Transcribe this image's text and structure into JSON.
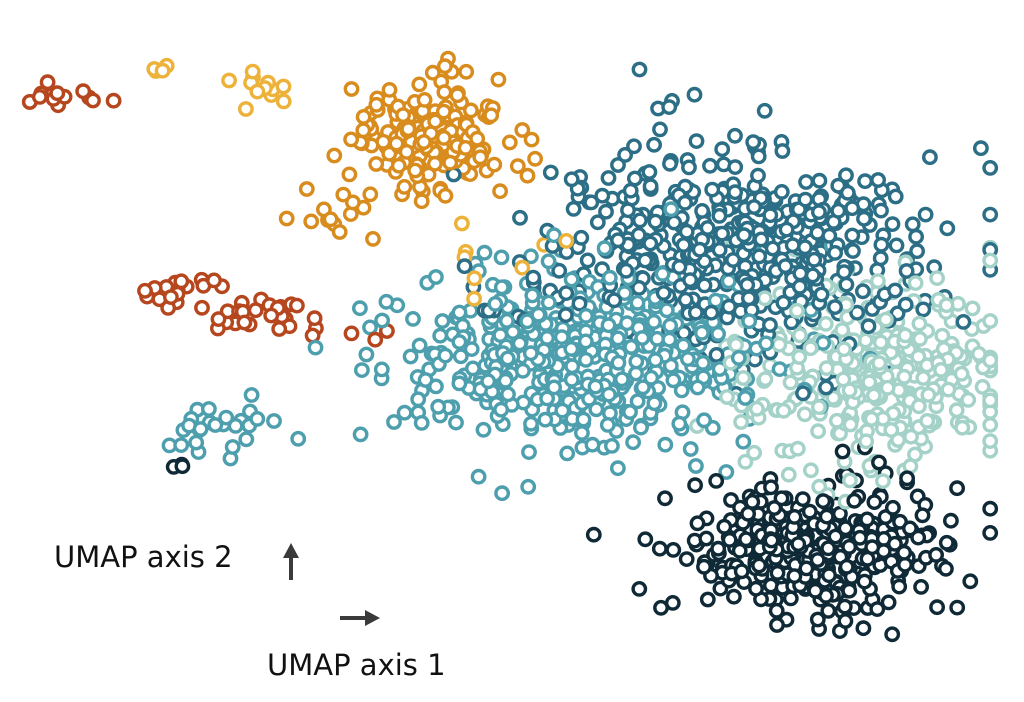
{
  "chart_data": {
    "type": "scatter",
    "title": "",
    "xlabel": "UMAP axis 1",
    "ylabel": "UMAP axis 2",
    "axes_visible": false,
    "grid": false,
    "legend": "none",
    "marker": "hollow-circle",
    "xlim": [
      0,
      100
    ],
    "ylim": [
      0,
      100
    ],
    "series": [
      {
        "color": "#B5461E",
        "clusters": [
          {
            "cx": 4,
            "cy": 90,
            "sx": 2,
            "sy": 1.2,
            "n": 14
          },
          {
            "cx": 17,
            "cy": 60,
            "sx": 2.5,
            "sy": 1.5,
            "n": 20
          },
          {
            "cx": 25,
            "cy": 56,
            "sx": 3,
            "sy": 1.5,
            "n": 25
          },
          {
            "cx": 36,
            "cy": 53,
            "sx": 1,
            "sy": 1,
            "n": 3
          }
        ]
      },
      {
        "color": "#D98C1E",
        "clusters": [
          {
            "cx": 42,
            "cy": 84,
            "sx": 4,
            "sy": 4,
            "n": 190
          },
          {
            "cx": 33,
            "cy": 73,
            "sx": 2,
            "sy": 3,
            "n": 14
          }
        ]
      },
      {
        "color": "#EDB23A",
        "clusters": [
          {
            "cx": 26,
            "cy": 91,
            "sx": 1.5,
            "sy": 1.5,
            "n": 12
          },
          {
            "cx": 14,
            "cy": 94,
            "sx": 0.5,
            "sy": 0.5,
            "n": 4
          },
          {
            "cx": 50,
            "cy": 65,
            "sx": 4,
            "sy": 3,
            "n": 8
          }
        ]
      },
      {
        "color": "#2B6E85",
        "clusters": [
          {
            "cx": 73,
            "cy": 66,
            "sx": 10,
            "sy": 8,
            "n": 520
          }
        ]
      },
      {
        "color": "#4E9FAE",
        "clusters": [
          {
            "cx": 58,
            "cy": 50,
            "sx": 10,
            "sy": 7,
            "n": 500
          },
          {
            "cx": 20,
            "cy": 39,
            "sx": 2.5,
            "sy": 2,
            "n": 25
          }
        ]
      },
      {
        "color": "#A4D2C8",
        "clusters": [
          {
            "cx": 87,
            "cy": 47,
            "sx": 7,
            "sy": 7,
            "n": 330
          }
        ]
      },
      {
        "color": "#0F2A36",
        "clusters": [
          {
            "cx": 81,
            "cy": 20,
            "sx": 7,
            "sy": 5,
            "n": 370
          },
          {
            "cx": 16,
            "cy": 33,
            "sx": 0.5,
            "sy": 0.5,
            "n": 3
          }
        ]
      }
    ]
  }
}
